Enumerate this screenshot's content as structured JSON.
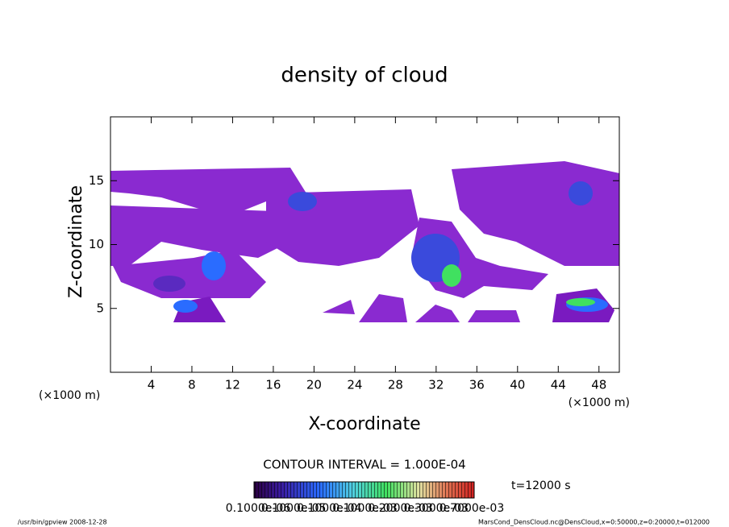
{
  "chart_data": {
    "type": "contour",
    "title": "density of cloud",
    "xlabel": "X-coordinate",
    "ylabel": "Z-coordinate",
    "xunit": "(×1000 m)",
    "yunit": "(×1000 m)",
    "xlim": [
      0,
      50
    ],
    "xticks": [
      4,
      8,
      12,
      16,
      20,
      24,
      28,
      32,
      36,
      40,
      44,
      48
    ],
    "ylim": [
      0,
      20
    ],
    "yticks": [
      5,
      10,
      15
    ],
    "contour_interval": "CONTOUR INTERVAL = 1.000E-04",
    "time": "t=12000 s",
    "colorbar_labels": [
      "0.1000e-06",
      "0.1000e-05",
      "0.1000e-04",
      "0.1000e-03",
      "0.2000e-03",
      "0.3000e-03",
      "0.7000e-03"
    ],
    "footer_left": "/usr/bin/gpview  2008-12-28",
    "footer_right": "MarsCond_DensCloud.nc@DensCloud,x=0:50000,z=0:20000,t=012000"
  }
}
